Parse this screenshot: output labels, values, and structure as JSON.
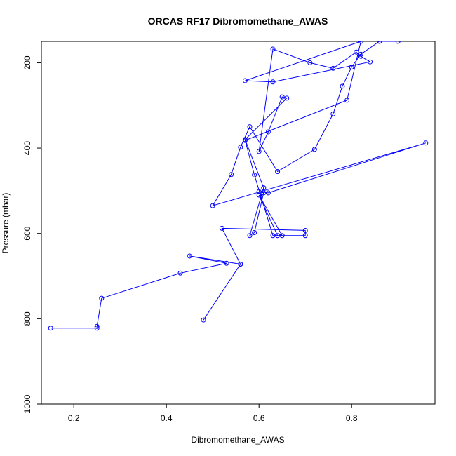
{
  "chart_data": {
    "type": "line",
    "title": "ORCAS RF17 Dibromomethane_AWAS",
    "xlabel": "Dibromomethane_AWAS",
    "ylabel": "Pressure (mbar)",
    "xlim": [
      0.13,
      0.98
    ],
    "ylim": [
      1000,
      150
    ],
    "y_reversed": true,
    "x_ticks": [
      "0.2",
      "0.4",
      "0.6",
      "0.8"
    ],
    "x_tick_values": [
      0.2,
      0.4,
      0.6,
      0.8
    ],
    "y_ticks": [
      "200",
      "400",
      "600",
      "800",
      "1000"
    ],
    "y_tick_values": [
      200,
      400,
      600,
      800,
      1000
    ],
    "grid": false,
    "legend": "none",
    "series_color": "#0000ff",
    "markers": "open-circle",
    "x": [
      0.15,
      0.25,
      0.25,
      0.26,
      0.43,
      0.53,
      0.45,
      0.56,
      0.48,
      0.56,
      0.52,
      0.7,
      0.7,
      0.64,
      0.6,
      0.65,
      0.63,
      0.59,
      0.57,
      0.79,
      0.82,
      0.57,
      0.63,
      0.84,
      0.82,
      0.81,
      0.76,
      0.71,
      0.63,
      0.6,
      0.62,
      0.65,
      0.66,
      0.57,
      0.61,
      0.58,
      0.59,
      0.61,
      0.6,
      0.62,
      0.96,
      0.5,
      0.54,
      0.56,
      0.58,
      0.64,
      0.72,
      0.76,
      0.78,
      0.8,
      0.82,
      0.86,
      0.9
    ],
    "y": [
      822,
      822,
      818,
      752,
      693,
      670,
      653,
      672,
      803,
      672,
      588,
      593,
      605,
      605,
      510,
      605,
      605,
      463,
      382,
      288,
      150,
      242,
      245,
      198,
      185,
      175,
      213,
      200,
      168,
      408,
      362,
      280,
      283,
      380,
      493,
      605,
      598,
      505,
      502,
      505,
      388,
      535,
      462,
      398,
      350,
      455,
      403,
      320,
      255,
      210,
      180,
      150,
      150
    ]
  }
}
